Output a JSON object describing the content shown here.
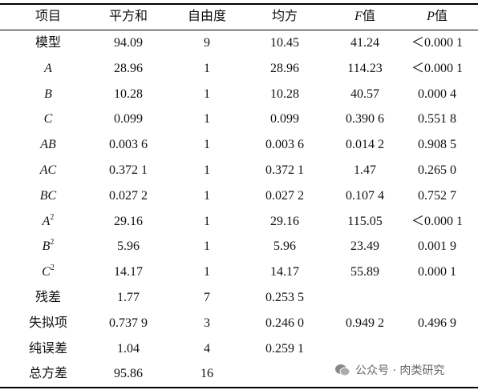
{
  "table": {
    "header": [
      "项目",
      "平方和",
      "自由度",
      "均方",
      {
        "symbol": "F",
        "text": "值"
      },
      {
        "symbol": "P",
        "text": "值"
      }
    ],
    "rows": [
      [
        "模型",
        "94.09",
        "9",
        "10.45",
        "41.24",
        "＜0.000 1"
      ],
      [
        "A",
        "28.96",
        "1",
        "28.96",
        "114.23",
        "＜0.000 1"
      ],
      [
        "B",
        "10.28",
        "1",
        "10.28",
        "40.57",
        "0.000 4"
      ],
      [
        "C",
        "0.099",
        "1",
        "0.099",
        "0.390 6",
        "0.551 8"
      ],
      [
        "AB",
        "0.003 6",
        "1",
        "0.003 6",
        "0.014 2",
        "0.908 5"
      ],
      [
        "AC",
        "0.372 1",
        "1",
        "0.372 1",
        "1.47",
        "0.265 0"
      ],
      [
        "BC",
        "0.027 2",
        "1",
        "0.027 2",
        "0.107 4",
        "0.752 7"
      ],
      [
        {
          "text": "A",
          "sup": "2"
        },
        "29.16",
        "1",
        "29.16",
        "115.05",
        "＜0.000 1"
      ],
      [
        {
          "text": "B",
          "sup": "2"
        },
        "5.96",
        "1",
        "5.96",
        "23.49",
        "0.001 9"
      ],
      [
        {
          "text": "C",
          "sup": "2"
        },
        "14.17",
        "1",
        "14.17",
        "55.89",
        "0.000 1"
      ],
      [
        "残差",
        "1.77",
        "7",
        "0.253 5"
      ],
      [
        "失拟项",
        "0.737 9",
        "3",
        "0.246 0",
        "0.949 2",
        "0.496 9"
      ],
      [
        "纯误差",
        "1.04",
        "4",
        "0.259 1"
      ],
      [
        "总方差",
        "95.86",
        "16"
      ]
    ]
  },
  "watermark": "公众号 · 肉类研究"
}
